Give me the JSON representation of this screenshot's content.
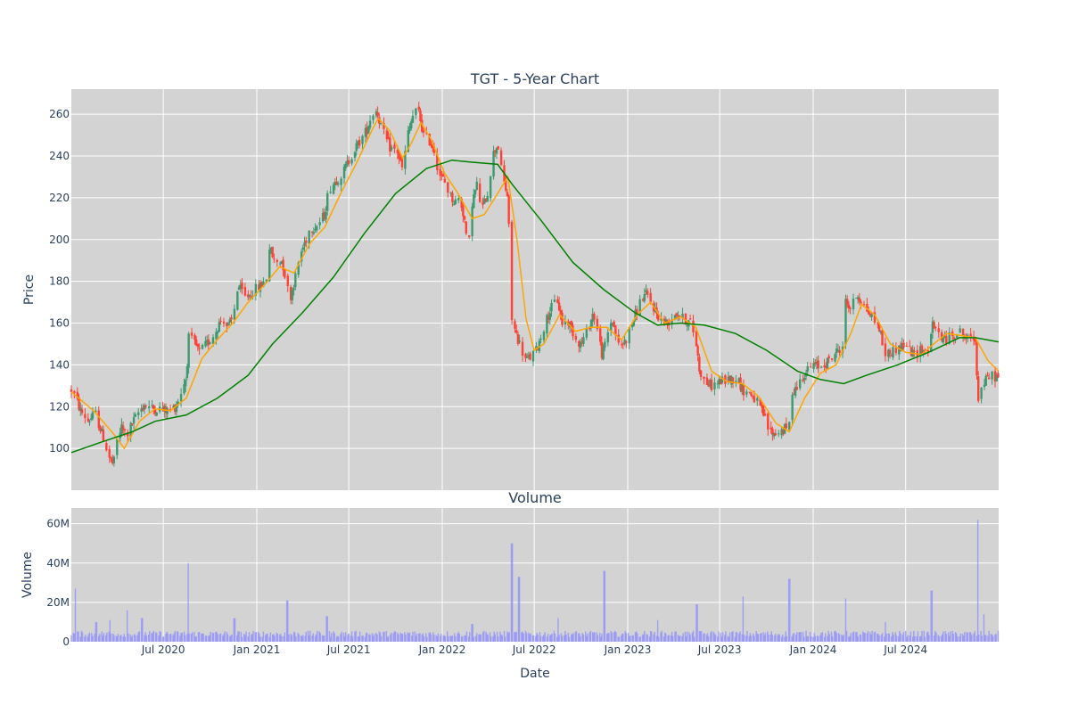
{
  "chart_data": [
    {
      "type": "candlestick",
      "title": "TGT - 5-Year Chart",
      "ylabel": "Price",
      "xlabel": "",
      "ylim": [
        80,
        272
      ],
      "x_range": [
        "2020-01-02",
        "2024-12-31"
      ],
      "yticks": [
        100,
        120,
        140,
        160,
        180,
        200,
        220,
        240,
        260
      ],
      "grid": true,
      "plot_background": "#d3d3d3",
      "legend": "none",
      "colors": {
        "increasing": "#3d9970",
        "decreasing": "#ff4136",
        "ma_short": "#ffa500",
        "ma_long": "#008000"
      },
      "price_path": [
        [
          "2020-01-02",
          128
        ],
        [
          "2020-01-10",
          125
        ],
        [
          "2020-01-20",
          118
        ],
        [
          "2020-02-05",
          113
        ],
        [
          "2020-02-18",
          117
        ],
        [
          "2020-03-01",
          108
        ],
        [
          "2020-03-10",
          101
        ],
        [
          "2020-03-18",
          95
        ],
        [
          "2020-03-25",
          92
        ],
        [
          "2020-04-01",
          104
        ],
        [
          "2020-04-10",
          110
        ],
        [
          "2020-04-20",
          106
        ],
        [
          "2020-05-01",
          112
        ],
        [
          "2020-05-15",
          118
        ],
        [
          "2020-05-25",
          121
        ],
        [
          "2020-06-10",
          119
        ],
        [
          "2020-06-25",
          119
        ],
        [
          "2020-07-10",
          118
        ],
        [
          "2020-07-25",
          120
        ],
        [
          "2020-08-05",
          127
        ],
        [
          "2020-08-15",
          134
        ],
        [
          "2020-08-20",
          153
        ],
        [
          "2020-09-01",
          150
        ],
        [
          "2020-09-10",
          146
        ],
        [
          "2020-09-25",
          150
        ],
        [
          "2020-10-10",
          155
        ],
        [
          "2020-10-25",
          163
        ],
        [
          "2020-11-05",
          158
        ],
        [
          "2020-11-15",
          162
        ],
        [
          "2020-11-25",
          178
        ],
        [
          "2020-12-10",
          172
        ],
        [
          "2020-12-28",
          176
        ],
        [
          "2021-01-10",
          178
        ],
        [
          "2021-01-20",
          182
        ],
        [
          "2021-01-25",
          197
        ],
        [
          "2021-02-05",
          189
        ],
        [
          "2021-02-20",
          190
        ],
        [
          "2021-03-01",
          178
        ],
        [
          "2021-03-08",
          172
        ],
        [
          "2021-03-18",
          182
        ],
        [
          "2021-03-28",
          193
        ],
        [
          "2021-04-15",
          205
        ],
        [
          "2021-05-01",
          207
        ],
        [
          "2021-05-15",
          212
        ],
        [
          "2021-05-22",
          224
        ],
        [
          "2021-06-05",
          228
        ],
        [
          "2021-06-20",
          232
        ],
        [
          "2021-07-05",
          240
        ],
        [
          "2021-07-20",
          246
        ],
        [
          "2021-08-05",
          252
        ],
        [
          "2021-08-15",
          260
        ],
        [
          "2021-08-25",
          262
        ],
        [
          "2021-09-05",
          252
        ],
        [
          "2021-09-20",
          244
        ],
        [
          "2021-10-05",
          242
        ],
        [
          "2021-10-15",
          233
        ],
        [
          "2021-10-25",
          250
        ],
        [
          "2021-11-05",
          260
        ],
        [
          "2021-11-15",
          262
        ],
        [
          "2021-11-25",
          250
        ],
        [
          "2021-12-05",
          248
        ],
        [
          "2021-12-15",
          244
        ],
        [
          "2021-12-25",
          232
        ],
        [
          "2022-01-05",
          228
        ],
        [
          "2022-01-15",
          222
        ],
        [
          "2022-01-25",
          218
        ],
        [
          "2022-02-05",
          220
        ],
        [
          "2022-02-15",
          208
        ],
        [
          "2022-02-20",
          190
        ],
        [
          "2022-03-01",
          218
        ],
        [
          "2022-03-10",
          226
        ],
        [
          "2022-03-20",
          214
        ],
        [
          "2022-04-01",
          223
        ],
        [
          "2022-04-10",
          240
        ],
        [
          "2022-04-20",
          246
        ],
        [
          "2022-04-28",
          232
        ],
        [
          "2022-05-10",
          220
        ],
        [
          "2022-05-18",
          162
        ],
        [
          "2022-05-25",
          156
        ],
        [
          "2022-06-05",
          148
        ],
        [
          "2022-06-15",
          142
        ],
        [
          "2022-06-25",
          144
        ],
        [
          "2022-07-05",
          147
        ],
        [
          "2022-07-20",
          158
        ],
        [
          "2022-08-01",
          166
        ],
        [
          "2022-08-15",
          172
        ],
        [
          "2022-08-25",
          160
        ],
        [
          "2022-09-05",
          161
        ],
        [
          "2022-09-20",
          153
        ],
        [
          "2022-10-01",
          150
        ],
        [
          "2022-10-15",
          157
        ],
        [
          "2022-10-25",
          165
        ],
        [
          "2022-11-05",
          154
        ],
        [
          "2022-11-12",
          144
        ],
        [
          "2022-11-20",
          153
        ],
        [
          "2022-12-01",
          162
        ],
        [
          "2022-12-15",
          148
        ],
        [
          "2022-12-28",
          152
        ],
        [
          "2023-01-10",
          160
        ],
        [
          "2023-01-25",
          170
        ],
        [
          "2023-02-05",
          174
        ],
        [
          "2023-02-20",
          168
        ],
        [
          "2023-03-05",
          162
        ],
        [
          "2023-03-20",
          160
        ],
        [
          "2023-04-05",
          165
        ],
        [
          "2023-04-20",
          162
        ],
        [
          "2023-05-05",
          160
        ],
        [
          "2023-05-15",
          152
        ],
        [
          "2023-05-22",
          138
        ],
        [
          "2023-06-01",
          132
        ],
        [
          "2023-06-15",
          130
        ],
        [
          "2023-07-01",
          132
        ],
        [
          "2023-07-20",
          133
        ],
        [
          "2023-08-05",
          134
        ],
        [
          "2023-08-15",
          128
        ],
        [
          "2023-09-01",
          126
        ],
        [
          "2023-09-15",
          121
        ],
        [
          "2023-09-25",
          116
        ],
        [
          "2023-10-05",
          109
        ],
        [
          "2023-10-15",
          107
        ],
        [
          "2023-10-25",
          108
        ],
        [
          "2023-11-05",
          109
        ],
        [
          "2023-11-15",
          111
        ],
        [
          "2023-11-20",
          127
        ],
        [
          "2023-12-01",
          130
        ],
        [
          "2023-12-15",
          136
        ],
        [
          "2024-01-01",
          140
        ],
        [
          "2024-01-15",
          139
        ],
        [
          "2024-02-01",
          142
        ],
        [
          "2024-02-15",
          146
        ],
        [
          "2024-03-01",
          150
        ],
        [
          "2024-03-05",
          170
        ],
        [
          "2024-03-15",
          167
        ],
        [
          "2024-03-28",
          174
        ],
        [
          "2024-04-10",
          168
        ],
        [
          "2024-04-25",
          163
        ],
        [
          "2024-05-10",
          158
        ],
        [
          "2024-05-20",
          145
        ],
        [
          "2024-06-01",
          146
        ],
        [
          "2024-06-15",
          148
        ],
        [
          "2024-07-01",
          150
        ],
        [
          "2024-07-15",
          145
        ],
        [
          "2024-08-01",
          148
        ],
        [
          "2024-08-15",
          145
        ],
        [
          "2024-08-21",
          159
        ],
        [
          "2024-09-01",
          156
        ],
        [
          "2024-09-15",
          152
        ],
        [
          "2024-10-01",
          154
        ],
        [
          "2024-10-15",
          156
        ],
        [
          "2024-11-01",
          152
        ],
        [
          "2024-11-15",
          153
        ],
        [
          "2024-11-20",
          124
        ],
        [
          "2024-12-01",
          131
        ],
        [
          "2024-12-15",
          135
        ],
        [
          "2024-12-31",
          134
        ]
      ],
      "moving_average_short": [
        [
          "2020-01-02",
          127
        ],
        [
          "2020-02-15",
          118
        ],
        [
          "2020-03-25",
          107
        ],
        [
          "2020-04-15",
          100
        ],
        [
          "2020-05-15",
          113
        ],
        [
          "2020-06-15",
          119
        ],
        [
          "2020-07-15",
          118
        ],
        [
          "2020-08-15",
          124
        ],
        [
          "2020-09-15",
          143
        ],
        [
          "2020-10-15",
          152
        ],
        [
          "2020-11-15",
          160
        ],
        [
          "2020-12-15",
          170
        ],
        [
          "2021-01-15",
          178
        ],
        [
          "2021-02-15",
          187
        ],
        [
          "2021-03-15",
          184
        ],
        [
          "2021-04-15",
          198
        ],
        [
          "2021-05-15",
          206
        ],
        [
          "2021-06-15",
          222
        ],
        [
          "2021-07-15",
          236
        ],
        [
          "2021-08-15",
          252
        ],
        [
          "2021-08-28",
          258
        ],
        [
          "2021-09-20",
          252
        ],
        [
          "2021-10-15",
          239
        ],
        [
          "2021-11-01",
          246
        ],
        [
          "2021-11-20",
          256
        ],
        [
          "2021-12-10",
          248
        ],
        [
          "2022-01-05",
          232
        ],
        [
          "2022-02-01",
          222
        ],
        [
          "2022-03-01",
          210
        ],
        [
          "2022-03-25",
          212
        ],
        [
          "2022-04-20",
          222
        ],
        [
          "2022-05-10",
          230
        ],
        [
          "2022-05-28",
          200
        ],
        [
          "2022-06-15",
          162
        ],
        [
          "2022-07-01",
          147
        ],
        [
          "2022-07-20",
          150
        ],
        [
          "2022-08-20",
          164
        ],
        [
          "2022-09-20",
          156
        ],
        [
          "2022-10-20",
          158
        ],
        [
          "2022-11-20",
          158
        ],
        [
          "2022-12-20",
          152
        ],
        [
          "2023-01-20",
          164
        ],
        [
          "2023-02-15",
          170
        ],
        [
          "2023-03-15",
          160
        ],
        [
          "2023-04-15",
          163
        ],
        [
          "2023-05-15",
          158
        ],
        [
          "2023-06-15",
          137
        ],
        [
          "2023-07-15",
          132
        ],
        [
          "2023-08-15",
          131
        ],
        [
          "2023-09-15",
          125
        ],
        [
          "2023-10-20",
          112
        ],
        [
          "2023-11-15",
          108
        ],
        [
          "2023-12-15",
          124
        ],
        [
          "2024-01-15",
          136
        ],
        [
          "2024-02-15",
          140
        ],
        [
          "2024-03-15",
          155
        ],
        [
          "2024-04-05",
          169
        ],
        [
          "2024-05-01",
          164
        ],
        [
          "2024-06-01",
          150
        ],
        [
          "2024-07-01",
          146
        ],
        [
          "2024-08-01",
          145
        ],
        [
          "2024-08-25",
          150
        ],
        [
          "2024-09-20",
          155
        ],
        [
          "2024-10-20",
          154
        ],
        [
          "2024-11-15",
          153
        ],
        [
          "2024-12-10",
          142
        ],
        [
          "2024-12-31",
          137
        ]
      ],
      "moving_average_long": [
        [
          "2020-01-02",
          98
        ],
        [
          "2020-03-01",
          103
        ],
        [
          "2020-05-01",
          108
        ],
        [
          "2020-06-15",
          113
        ],
        [
          "2020-08-15",
          116
        ],
        [
          "2020-10-15",
          124
        ],
        [
          "2020-12-15",
          135
        ],
        [
          "2021-02-01",
          150
        ],
        [
          "2021-04-01",
          165
        ],
        [
          "2021-06-01",
          182
        ],
        [
          "2021-08-01",
          203
        ],
        [
          "2021-10-01",
          222
        ],
        [
          "2021-12-01",
          234
        ],
        [
          "2022-01-20",
          238
        ],
        [
          "2022-03-01",
          237
        ],
        [
          "2022-04-20",
          236
        ],
        [
          "2022-05-20",
          226
        ],
        [
          "2022-07-15",
          209
        ],
        [
          "2022-09-15",
          189
        ],
        [
          "2022-11-15",
          176
        ],
        [
          "2023-01-15",
          165
        ],
        [
          "2023-03-01",
          159
        ],
        [
          "2023-04-15",
          160
        ],
        [
          "2023-06-01",
          159
        ],
        [
          "2023-08-01",
          155
        ],
        [
          "2023-10-01",
          147
        ],
        [
          "2023-12-01",
          137
        ],
        [
          "2024-01-15",
          133
        ],
        [
          "2024-03-01",
          131
        ],
        [
          "2024-04-15",
          135
        ],
        [
          "2024-06-15",
          140
        ],
        [
          "2024-08-15",
          146
        ],
        [
          "2024-10-15",
          153
        ],
        [
          "2024-11-15",
          153
        ],
        [
          "2024-12-31",
          151
        ]
      ]
    },
    {
      "type": "bar",
      "title": "Volume",
      "xlabel": "Date",
      "ylabel": "Volume",
      "ylim": [
        0,
        68000000
      ],
      "yticks": [
        0,
        20000000,
        40000000,
        60000000
      ],
      "ytick_labels": [
        "0",
        "20M",
        "40M",
        "60M"
      ],
      "xticks": [
        "2020-07-01",
        "2021-01-01",
        "2021-07-01",
        "2022-01-01",
        "2022-07-01",
        "2023-01-01",
        "2023-07-01",
        "2024-01-01",
        "2024-07-01"
      ],
      "xtick_labels": [
        "Jul 2020",
        "Jan 2021",
        "Jul 2021",
        "Jan 2022",
        "Jul 2022",
        "Jan 2023",
        "Jul 2023",
        "Jan 2024",
        "Jul 2024"
      ],
      "bar_color": "#8c8cff",
      "base_volume": 4000000,
      "volume_spikes": [
        [
          "2020-01-10",
          27000000
        ],
        [
          "2020-02-20",
          10000000
        ],
        [
          "2020-03-18",
          11000000
        ],
        [
          "2020-04-20",
          16000000
        ],
        [
          "2020-05-20",
          12000000
        ],
        [
          "2020-08-19",
          40000000
        ],
        [
          "2020-11-18",
          12000000
        ],
        [
          "2021-03-02",
          21000000
        ],
        [
          "2021-05-19",
          13000000
        ],
        [
          "2022-03-01",
          9000000
        ],
        [
          "2022-05-18",
          50000000
        ],
        [
          "2022-06-01",
          33000000
        ],
        [
          "2022-08-17",
          12000000
        ],
        [
          "2022-11-16",
          36000000
        ],
        [
          "2023-03-01",
          11000000
        ],
        [
          "2023-05-17",
          19000000
        ],
        [
          "2023-08-16",
          23000000
        ],
        [
          "2023-11-15",
          32000000
        ],
        [
          "2024-03-05",
          22000000
        ],
        [
          "2024-05-22",
          10000000
        ],
        [
          "2024-08-21",
          26000000
        ],
        [
          "2024-11-20",
          62000000
        ],
        [
          "2024-12-02",
          14000000
        ]
      ]
    }
  ]
}
